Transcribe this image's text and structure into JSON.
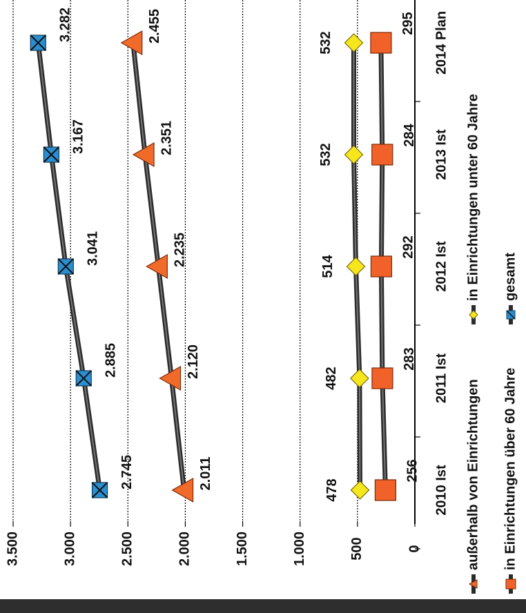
{
  "chart_data": {
    "type": "line",
    "categories": [
      "2010 Ist",
      "2011 Ist",
      "2012 Ist",
      "2013 Ist",
      "2014 Plan"
    ],
    "ylim": [
      0,
      3500
    ],
    "yticks": [
      {
        "value": 0,
        "label": "0"
      },
      {
        "value": 500,
        "label": "500"
      },
      {
        "value": 1000,
        "label": "1.000"
      },
      {
        "value": 1500,
        "label": "1.500"
      },
      {
        "value": 2000,
        "label": "2.000"
      },
      {
        "value": 2500,
        "label": "2.500"
      },
      {
        "value": 3000,
        "label": "3.000"
      },
      {
        "value": 3500,
        "label": "3.500"
      }
    ],
    "grid": true,
    "orientation": "rotated 90 degrees clockwise",
    "legend_position": "bottom",
    "series": [
      {
        "name": "außerhalb von Einrichtungen",
        "marker": "triangle",
        "color": "#f06a2a",
        "values": [
          2011,
          2120,
          2235,
          2351,
          2455
        ],
        "labels": [
          "2.011",
          "2.120",
          "2.235",
          "2.351",
          "2.455"
        ]
      },
      {
        "name": "in Einrichtungen unter 60 Jahre",
        "marker": "diamond",
        "color": "#f5e61e",
        "values": [
          478,
          482,
          514,
          532,
          532
        ],
        "labels": [
          "478",
          "482",
          "514",
          "532",
          "532"
        ]
      },
      {
        "name": "in Einrichtungen über 60 Jahre",
        "marker": "square",
        "color": "#f0622a",
        "values": [
          256,
          283,
          292,
          284,
          295
        ],
        "labels": [
          "256",
          "283",
          "292",
          "284",
          "295"
        ]
      },
      {
        "name": "gesamt",
        "marker": "square-x",
        "color": "#2a8fd0",
        "values": [
          2745,
          2885,
          3041,
          3167,
          3282
        ],
        "labels": [
          "2.745",
          "2.885",
          "3.041",
          "3.167",
          "3.282"
        ]
      }
    ]
  }
}
